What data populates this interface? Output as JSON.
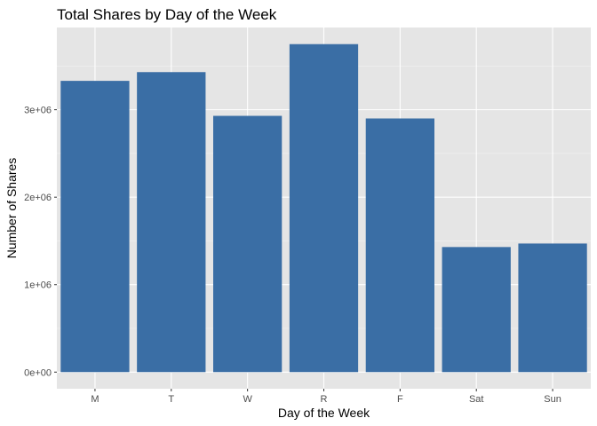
{
  "chart_data": {
    "type": "bar",
    "title": "Total Shares by Day of the Week",
    "xlabel": "Day of the Week",
    "ylabel": "Number of Shares",
    "categories": [
      "M",
      "T",
      "W",
      "R",
      "F",
      "Sat",
      "Sun"
    ],
    "values": [
      3330000,
      3430000,
      2930000,
      3750000,
      2900000,
      1430000,
      1470000
    ],
    "ylim": [
      -190000,
      3940000
    ],
    "yticks": [
      0,
      1000000,
      2000000,
      3000000
    ],
    "ytick_labels": [
      "0e+00",
      "1e+06",
      "2e+06",
      "3e+06"
    ],
    "grid": true,
    "colors": {
      "bar": "#3A6EA5",
      "panel_background": "#E5E5E5",
      "grid_major": "#FFFFFF",
      "grid_minor": "#F2F2F2",
      "tick": "#333333"
    }
  }
}
